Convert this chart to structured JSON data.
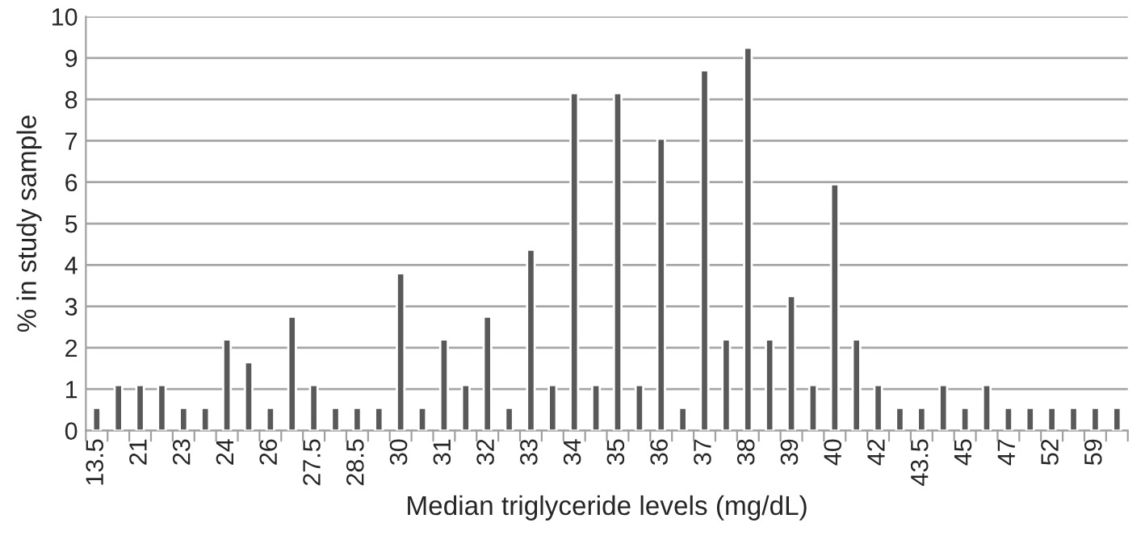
{
  "chart_data": {
    "type": "bar",
    "xlabel": "Median triglyceride levels (mg/dL)",
    "ylabel": "% in study sample",
    "categories": [
      "13.5",
      null,
      "21",
      null,
      "23",
      null,
      "24",
      null,
      "26",
      null,
      "27.5",
      null,
      "28.5",
      null,
      "30",
      null,
      "31",
      null,
      "32",
      null,
      "33",
      null,
      "34",
      null,
      "35",
      null,
      "36",
      null,
      "37",
      null,
      "38",
      null,
      "39",
      null,
      "40",
      null,
      "42",
      null,
      "43.5",
      null,
      "45",
      null,
      "47",
      null,
      "52",
      null,
      "59",
      null
    ],
    "values": [
      0.55,
      1.1,
      1.1,
      1.1,
      0.55,
      0.55,
      2.2,
      1.65,
      0.55,
      2.75,
      1.1,
      0.55,
      0.55,
      0.55,
      3.8,
      0.55,
      2.2,
      1.1,
      2.75,
      0.55,
      4.37,
      1.1,
      8.15,
      1.1,
      8.15,
      1.1,
      7.05,
      0.55,
      8.7,
      2.2,
      9.25,
      2.2,
      3.25,
      1.1,
      5.95,
      2.2,
      1.1,
      0.55,
      0.55,
      1.1,
      0.55,
      1.1,
      0.55,
      0.55,
      0.55,
      0.55,
      0.55,
      0.55
    ],
    "color": "#595959",
    "ylim": [
      0,
      10
    ],
    "yticks": [
      0,
      1,
      2,
      3,
      4,
      5,
      6,
      7,
      8,
      9,
      10
    ],
    "grid": "y",
    "legend": false
  }
}
